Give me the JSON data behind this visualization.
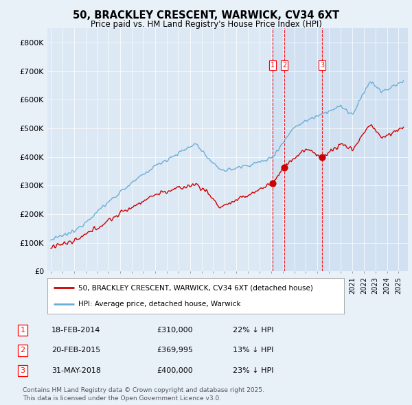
{
  "title": "50, BRACKLEY CRESCENT, WARWICK, CV34 6XT",
  "subtitle": "Price paid vs. HM Land Registry's House Price Index (HPI)",
  "hpi_color": "#6baed6",
  "price_color": "#cc0000",
  "background_color": "#e8f0f8",
  "plot_bg_color": "#dce8f4",
  "highlight_bg_color": "#c8dcf0",
  "ylim": [
    0,
    850000
  ],
  "yticks": [
    0,
    100000,
    200000,
    300000,
    400000,
    500000,
    600000,
    700000,
    800000
  ],
  "ytick_labels": [
    "£0",
    "£100K",
    "£200K",
    "£300K",
    "£400K",
    "£500K",
    "£600K",
    "£700K",
    "£800K"
  ],
  "transactions": [
    {
      "num": 1,
      "date": "18-FEB-2014",
      "price": 310000,
      "pct": "22%",
      "year": 2014.12
    },
    {
      "num": 2,
      "date": "20-FEB-2015",
      "price": 369995,
      "pct": "13%",
      "year": 2015.13
    },
    {
      "num": 3,
      "date": "31-MAY-2018",
      "price": 400000,
      "pct": "23%",
      "year": 2018.42
    }
  ],
  "legend_label_price": "50, BRACKLEY CRESCENT, WARWICK, CV34 6XT (detached house)",
  "legend_label_hpi": "HPI: Average price, detached house, Warwick",
  "footer": "Contains HM Land Registry data © Crown copyright and database right 2025.\nThis data is licensed under the Open Government Licence v3.0.",
  "xstart": 1995,
  "xend": 2025
}
